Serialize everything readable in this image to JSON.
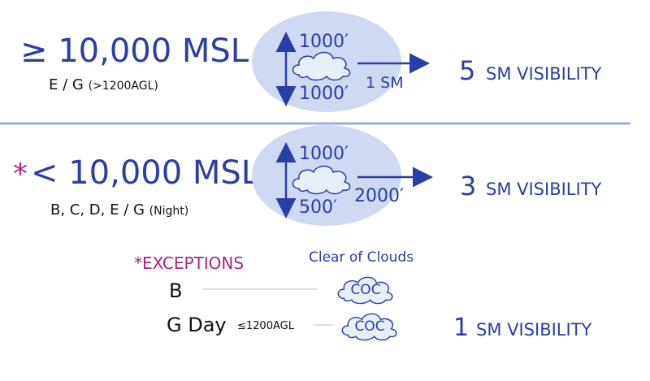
{
  "rows": [
    {
      "altitude": "≥ 10,000 MSL",
      "classes": "E / G",
      "classes_note": "(>1200AGL)",
      "above": "1000′",
      "below": "1000′",
      "horizontal": "1 SM",
      "visibility_number": "5",
      "visibility_unit": "SM VISIBILITY"
    },
    {
      "marker": "*",
      "altitude": "< 10,000 MSL",
      "classes": "B, C, D, E / G",
      "classes_note": "(Night)",
      "above": "1000′",
      "below": "500′",
      "horizontal": "2000′",
      "visibility_number": "3",
      "visibility_unit": "SM VISIBILITY"
    }
  ],
  "exceptions": {
    "title": "*EXCEPTIONS",
    "legend": "Clear of Clouds",
    "items": [
      {
        "class": "B",
        "cloud": "COC"
      },
      {
        "class": "G Day",
        "note": "≤1200AGL",
        "cloud": "COC",
        "visibility_number": "1",
        "visibility_unit": "SM VISIBILITY"
      }
    ]
  }
}
